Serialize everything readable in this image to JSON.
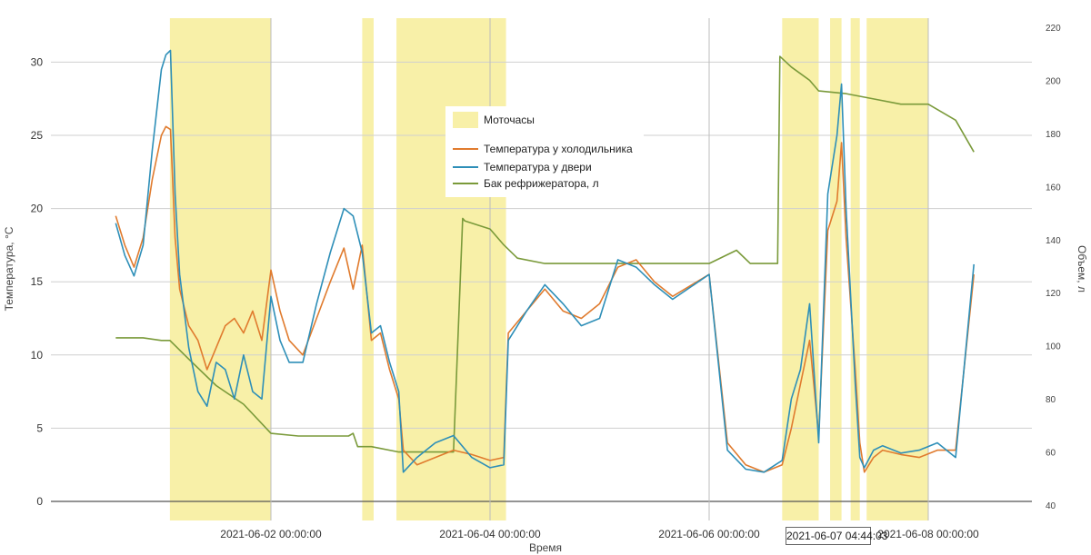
{
  "chart_data": {
    "type": "line",
    "xlabel": "Время",
    "ylabel": "Температура, °C",
    "y2label": "Объем, л",
    "x_ticks": [
      "2021-06-02 00:00:00",
      "2021-06-04 00:00:00",
      "2021-06-06 00:00:00",
      "2021-06-08 00:00:00"
    ],
    "ylim": [
      0,
      33
    ],
    "y_ticks": [
      0,
      5,
      10,
      15,
      20,
      25,
      30
    ],
    "y2lim": [
      40,
      220
    ],
    "y2_ticks": [
      40,
      60,
      80,
      100,
      120,
      140,
      160,
      180,
      200,
      220
    ],
    "legend": {
      "placement": "top-center",
      "band_label": "Моточасы",
      "band_color": "#f8f0a8"
    },
    "motor_hours": [
      [
        "2021-06-01 01:52",
        "2021-06-02 00:00"
      ],
      [
        "2021-06-02 20:00",
        "2021-06-02 22:30"
      ],
      [
        "2021-06-03 03:30",
        "2021-06-04 03:30"
      ],
      [
        "2021-06-06 16:00",
        "2021-06-07 00:00"
      ],
      [
        "2021-06-07 02:30",
        "2021-06-07 05:00"
      ],
      [
        "2021-06-07 07:00",
        "2021-06-07 09:00"
      ],
      [
        "2021-06-07 10:30",
        "2021-06-08 00:00"
      ]
    ],
    "tooltip": "2021-06-07 04:44:03",
    "series": [
      {
        "name": "Температура у холодильника",
        "color": "#e07b2e",
        "axis": "left",
        "x": [
          "2021-05-31 14:00",
          "2021-05-31 16:00",
          "2021-05-31 18:00",
          "2021-05-31 20:00",
          "2021-05-31 22:00",
          "2021-06-01 00:00",
          "2021-06-01 01:00",
          "2021-06-01 02:00",
          "2021-06-01 03:00",
          "2021-06-01 04:00",
          "2021-06-01 06:00",
          "2021-06-01 08:00",
          "2021-06-01 10:00",
          "2021-06-01 12:00",
          "2021-06-01 14:00",
          "2021-06-01 16:00",
          "2021-06-01 18:00",
          "2021-06-01 20:00",
          "2021-06-01 22:00",
          "2021-06-02 00:00",
          "2021-06-02 02:00",
          "2021-06-02 04:00",
          "2021-06-02 07:00",
          "2021-06-02 10:00",
          "2021-06-02 13:00",
          "2021-06-02 16:00",
          "2021-06-02 18:00",
          "2021-06-02 20:00",
          "2021-06-02 22:00",
          "2021-06-03 00:00",
          "2021-06-03 02:00",
          "2021-06-03 04:00",
          "2021-06-03 05:00",
          "2021-06-03 08:00",
          "2021-06-03 12:00",
          "2021-06-03 16:00",
          "2021-06-03 20:00",
          "2021-06-04 00:00",
          "2021-06-04 03:00",
          "2021-06-04 04:00",
          "2021-06-04 08:00",
          "2021-06-04 12:00",
          "2021-06-04 16:00",
          "2021-06-04 20:00",
          "2021-06-05 00:00",
          "2021-06-05 04:00",
          "2021-06-05 08:00",
          "2021-06-05 12:00",
          "2021-06-05 16:00",
          "2021-06-06 00:00",
          "2021-06-06 04:00",
          "2021-06-06 08:00",
          "2021-06-06 12:00",
          "2021-06-06 16:00",
          "2021-06-06 18:00",
          "2021-06-06 20:00",
          "2021-06-06 22:00",
          "2021-06-07 00:00",
          "2021-06-07 02:00",
          "2021-06-07 04:00",
          "2021-06-07 05:00",
          "2021-06-07 06:00",
          "2021-06-07 08:00",
          "2021-06-07 09:00",
          "2021-06-07 10:00",
          "2021-06-07 12:00",
          "2021-06-07 14:00",
          "2021-06-07 18:00",
          "2021-06-07 22:00",
          "2021-06-08 02:00",
          "2021-06-08 06:00",
          "2021-06-08 10:00"
        ],
        "y": [
          19.5,
          17.5,
          16.0,
          18.0,
          22.0,
          25.0,
          25.6,
          25.4,
          18.0,
          14.5,
          12.0,
          11.0,
          9.0,
          10.5,
          12.0,
          12.5,
          11.5,
          13.0,
          11.0,
          15.8,
          13.0,
          11.0,
          10.0,
          12.5,
          15.0,
          17.3,
          14.5,
          17.5,
          11.0,
          11.5,
          9.0,
          7.0,
          3.5,
          2.5,
          3.0,
          3.5,
          3.2,
          2.8,
          3.0,
          11.5,
          13.0,
          14.5,
          13.0,
          12.5,
          13.5,
          16.0,
          16.5,
          15.0,
          14.0,
          15.5,
          4.0,
          2.5,
          2.0,
          2.5,
          5.0,
          8.0,
          11.0,
          4.5,
          18.5,
          20.5,
          24.5,
          18.0,
          9.0,
          4.0,
          2.0,
          3.0,
          3.5,
          3.2,
          3.0,
          3.5,
          3.5,
          15.5
        ]
      },
      {
        "name": "Температура у двери",
        "color": "#2e8fb8",
        "axis": "left",
        "x": [
          "2021-05-31 14:00",
          "2021-05-31 16:00",
          "2021-05-31 18:00",
          "2021-05-31 20:00",
          "2021-05-31 22:00",
          "2021-06-01 00:00",
          "2021-06-01 01:00",
          "2021-06-01 02:00",
          "2021-06-01 03:00",
          "2021-06-01 04:00",
          "2021-06-01 06:00",
          "2021-06-01 08:00",
          "2021-06-01 10:00",
          "2021-06-01 12:00",
          "2021-06-01 14:00",
          "2021-06-01 16:00",
          "2021-06-01 18:00",
          "2021-06-01 20:00",
          "2021-06-01 22:00",
          "2021-06-02 00:00",
          "2021-06-02 02:00",
          "2021-06-02 04:00",
          "2021-06-02 07:00",
          "2021-06-02 10:00",
          "2021-06-02 13:00",
          "2021-06-02 16:00",
          "2021-06-02 18:00",
          "2021-06-02 20:00",
          "2021-06-02 22:00",
          "2021-06-03 00:00",
          "2021-06-03 02:00",
          "2021-06-03 04:00",
          "2021-06-03 05:00",
          "2021-06-03 08:00",
          "2021-06-03 12:00",
          "2021-06-03 16:00",
          "2021-06-03 20:00",
          "2021-06-04 00:00",
          "2021-06-04 03:00",
          "2021-06-04 04:00",
          "2021-06-04 08:00",
          "2021-06-04 12:00",
          "2021-06-04 16:00",
          "2021-06-04 20:00",
          "2021-06-05 00:00",
          "2021-06-05 04:00",
          "2021-06-05 08:00",
          "2021-06-05 12:00",
          "2021-06-05 16:00",
          "2021-06-06 00:00",
          "2021-06-06 04:00",
          "2021-06-06 08:00",
          "2021-06-06 12:00",
          "2021-06-06 16:00",
          "2021-06-06 18:00",
          "2021-06-06 20:00",
          "2021-06-06 22:00",
          "2021-06-07 00:00",
          "2021-06-07 02:00",
          "2021-06-07 04:00",
          "2021-06-07 05:00",
          "2021-06-07 06:00",
          "2021-06-07 08:00",
          "2021-06-07 09:00",
          "2021-06-07 10:00",
          "2021-06-07 12:00",
          "2021-06-07 14:00",
          "2021-06-07 18:00",
          "2021-06-07 22:00",
          "2021-06-08 02:00",
          "2021-06-08 06:00",
          "2021-06-08 10:00"
        ],
        "y": [
          19.0,
          16.8,
          15.4,
          17.5,
          24.0,
          29.5,
          30.5,
          30.8,
          21.0,
          15.5,
          10.5,
          7.5,
          6.5,
          9.5,
          9.0,
          7.0,
          10.0,
          7.5,
          7.0,
          14.0,
          11.0,
          9.5,
          9.5,
          13.5,
          17.0,
          20.0,
          19.5,
          17.0,
          11.5,
          12.0,
          9.5,
          7.5,
          2.0,
          3.0,
          4.0,
          4.5,
          3.0,
          2.3,
          2.5,
          11.0,
          13.0,
          14.8,
          13.5,
          12.0,
          12.5,
          16.5,
          16.0,
          14.8,
          13.8,
          15.5,
          3.5,
          2.2,
          2.0,
          2.8,
          7.0,
          9.0,
          13.5,
          4.0,
          21.0,
          25.0,
          28.5,
          20.0,
          8.0,
          3.0,
          2.3,
          3.5,
          3.8,
          3.3,
          3.5,
          4.0,
          3.0,
          16.2
        ]
      },
      {
        "name": "Бак рефрижератора, л",
        "color": "#7a9a3a",
        "axis": "right",
        "x": [
          "2021-05-31 14:00",
          "2021-05-31 20:00",
          "2021-06-01 00:00",
          "2021-06-01 01:52",
          "2021-06-01 06:00",
          "2021-06-01 12:00",
          "2021-06-01 18:00",
          "2021-06-02 00:00",
          "2021-06-02 06:00",
          "2021-06-02 12:00",
          "2021-06-02 17:00",
          "2021-06-02 18:00",
          "2021-06-02 19:00",
          "2021-06-02 22:00",
          "2021-06-03 04:00",
          "2021-06-03 10:00",
          "2021-06-03 16:00",
          "2021-06-03 18:00",
          "2021-06-03 18:30",
          "2021-06-04 00:00",
          "2021-06-04 03:00",
          "2021-06-04 06:00",
          "2021-06-04 12:00",
          "2021-06-05 00:00",
          "2021-06-05 12:00",
          "2021-06-05 18:00",
          "2021-06-06 00:00",
          "2021-06-06 06:00",
          "2021-06-06 09:00",
          "2021-06-06 15:00",
          "2021-06-06 15:30",
          "2021-06-06 18:00",
          "2021-06-06 22:00",
          "2021-06-07 00:00",
          "2021-06-07 06:00",
          "2021-06-07 12:00",
          "2021-06-07 18:00",
          "2021-06-08 00:00",
          "2021-06-08 06:00",
          "2021-06-08 10:00"
        ],
        "y": [
          103,
          103,
          102,
          102,
          95,
          85,
          78,
          67,
          66,
          66,
          66,
          67,
          62,
          62,
          60,
          60,
          60,
          148,
          147,
          144,
          138,
          133,
          131,
          131,
          131,
          131,
          131,
          136,
          131,
          131,
          209,
          205,
          200,
          196,
          195,
          193,
          191,
          191,
          185,
          173
        ]
      }
    ]
  }
}
